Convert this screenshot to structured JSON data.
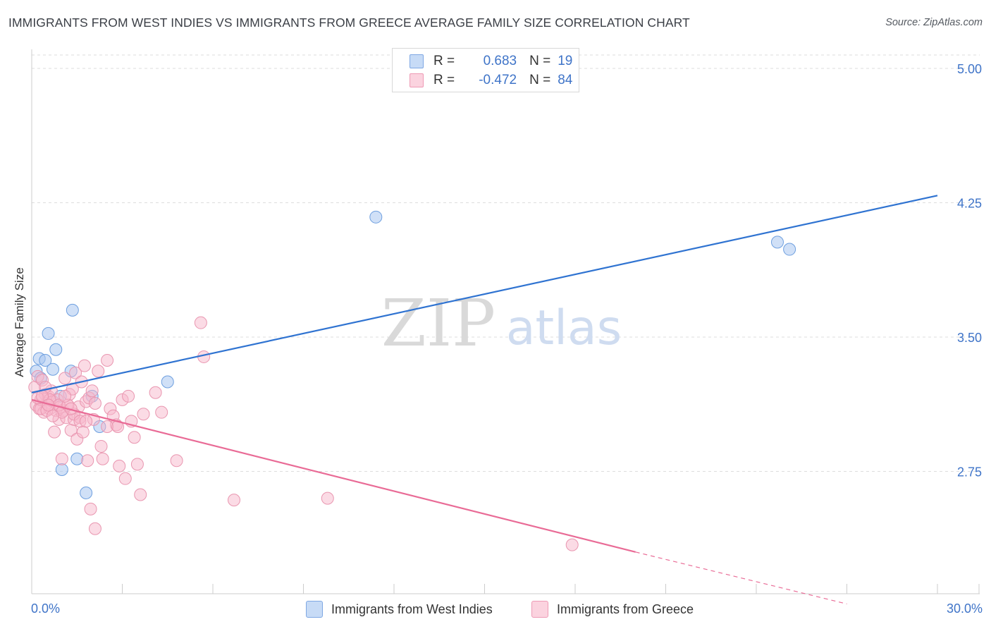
{
  "title": "IMMIGRANTS FROM WEST INDIES VS IMMIGRANTS FROM GREECE AVERAGE FAMILY SIZE CORRELATION CHART",
  "source": "Source: ZipAtlas.com",
  "watermark": {
    "zip": "ZIP",
    "atlas": "atlas"
  },
  "legend": {
    "r_label": "R =",
    "n_label": "N =",
    "rows": [
      {
        "r": "0.683",
        "n": "19",
        "color": "#a9c6f0"
      },
      {
        "r": "-0.472",
        "n": "84",
        "color": "#f7b8cb"
      }
    ]
  },
  "chart_data": {
    "type": "scatter",
    "title": "IMMIGRANTS FROM WEST INDIES VS IMMIGRANTS FROM GREECE AVERAGE FAMILY SIZE CORRELATION CHART",
    "xlabel": "",
    "ylabel": "Average Family Size",
    "xlim": [
      0,
      30
    ],
    "ylim": [
      2.0,
      5.1
    ],
    "x_tick_labels": [
      "0.0%",
      "30.0%"
    ],
    "y_ticks": [
      2.75,
      3.5,
      4.25,
      5.0
    ],
    "y_tick_labels": [
      "2.75",
      "3.50",
      "4.25",
      "5.00"
    ],
    "grid": true,
    "series": [
      {
        "name": "Immigrants from West Indies",
        "color": "#6e9fdf",
        "fill": "#a9c6f0",
        "line_color": "#2f73d1",
        "trend": [
          [
            0,
            3.19
          ],
          [
            30,
            4.29
          ]
        ],
        "points": [
          [
            0.15,
            3.31
          ],
          [
            0.25,
            3.38
          ],
          [
            0.3,
            3.27
          ],
          [
            0.45,
            3.37
          ],
          [
            0.55,
            3.52
          ],
          [
            0.7,
            3.32
          ],
          [
            0.8,
            3.43
          ],
          [
            0.95,
            3.17
          ],
          [
            1.0,
            2.76
          ],
          [
            1.3,
            3.31
          ],
          [
            1.35,
            3.65
          ],
          [
            1.5,
            2.82
          ],
          [
            1.8,
            2.63
          ],
          [
            2.0,
            3.17
          ],
          [
            2.25,
            3.0
          ],
          [
            4.5,
            3.25
          ],
          [
            11.4,
            4.17
          ],
          [
            24.7,
            4.03
          ],
          [
            25.1,
            3.99
          ]
        ]
      },
      {
        "name": "Immigrants from Greece",
        "color": "#e996b0",
        "fill": "#f7b8cb",
        "line_color": "#e96b96",
        "trend": [
          [
            0,
            3.15
          ],
          [
            20,
            2.3
          ]
        ],
        "trend_dashed": [
          [
            20,
            2.3
          ],
          [
            27,
            2.01
          ]
        ],
        "points": [
          [
            0.1,
            3.22
          ],
          [
            0.15,
            3.12
          ],
          [
            0.2,
            3.28
          ],
          [
            0.25,
            3.1
          ],
          [
            0.3,
            3.15
          ],
          [
            0.35,
            3.26
          ],
          [
            0.4,
            3.08
          ],
          [
            0.45,
            3.18
          ],
          [
            0.5,
            3.13
          ],
          [
            0.55,
            3.17
          ],
          [
            0.6,
            3.1
          ],
          [
            0.65,
            3.2
          ],
          [
            0.7,
            3.14
          ],
          [
            0.75,
            2.97
          ],
          [
            0.8,
            3.09
          ],
          [
            0.85,
            3.15
          ],
          [
            0.9,
            3.04
          ],
          [
            0.95,
            3.11
          ],
          [
            1.0,
            2.82
          ],
          [
            1.05,
            3.09
          ],
          [
            1.1,
            3.27
          ],
          [
            1.15,
            3.05
          ],
          [
            1.2,
            3.12
          ],
          [
            1.25,
            3.18
          ],
          [
            1.3,
            2.98
          ],
          [
            1.35,
            3.21
          ],
          [
            1.4,
            3.04
          ],
          [
            1.45,
            3.3
          ],
          [
            1.5,
            2.93
          ],
          [
            1.55,
            3.11
          ],
          [
            1.6,
            3.05
          ],
          [
            1.65,
            3.25
          ],
          [
            1.7,
            2.97
          ],
          [
            1.75,
            3.34
          ],
          [
            1.8,
            3.14
          ],
          [
            1.85,
            2.81
          ],
          [
            1.9,
            3.16
          ],
          [
            1.95,
            2.54
          ],
          [
            2.0,
            3.2
          ],
          [
            2.05,
            3.04
          ],
          [
            2.1,
            2.43
          ],
          [
            2.2,
            3.31
          ],
          [
            2.3,
            2.89
          ],
          [
            2.35,
            2.82
          ],
          [
            2.5,
            3.37
          ],
          [
            2.6,
            3.1
          ],
          [
            2.7,
            3.06
          ],
          [
            2.8,
            3.01
          ],
          [
            2.9,
            2.78
          ],
          [
            3.0,
            3.15
          ],
          [
            3.1,
            2.71
          ],
          [
            3.2,
            3.17
          ],
          [
            3.3,
            3.03
          ],
          [
            3.4,
            2.94
          ],
          [
            3.5,
            2.79
          ],
          [
            3.6,
            2.62
          ],
          [
            3.7,
            3.07
          ],
          [
            4.1,
            3.19
          ],
          [
            4.3,
            3.08
          ],
          [
            4.8,
            2.81
          ],
          [
            5.6,
            3.58
          ],
          [
            5.7,
            3.39
          ],
          [
            6.7,
            2.59
          ],
          [
            9.8,
            2.6
          ],
          [
            17.9,
            2.34
          ],
          [
            0.3,
            3.1
          ],
          [
            0.5,
            3.09
          ],
          [
            0.6,
            3.15
          ],
          [
            0.9,
            3.12
          ],
          [
            1.0,
            3.08
          ],
          [
            1.2,
            3.12
          ],
          [
            1.4,
            3.07
          ],
          [
            1.6,
            3.03
          ],
          [
            0.2,
            3.16
          ],
          [
            0.45,
            3.22
          ],
          [
            0.7,
            3.06
          ],
          [
            1.1,
            3.17
          ],
          [
            1.3,
            3.1
          ],
          [
            1.8,
            3.03
          ],
          [
            2.1,
            3.13
          ],
          [
            2.5,
            3.0
          ],
          [
            2.85,
            3.0
          ],
          [
            0.35,
            3.17
          ],
          [
            0.55,
            3.12
          ]
        ]
      }
    ]
  }
}
